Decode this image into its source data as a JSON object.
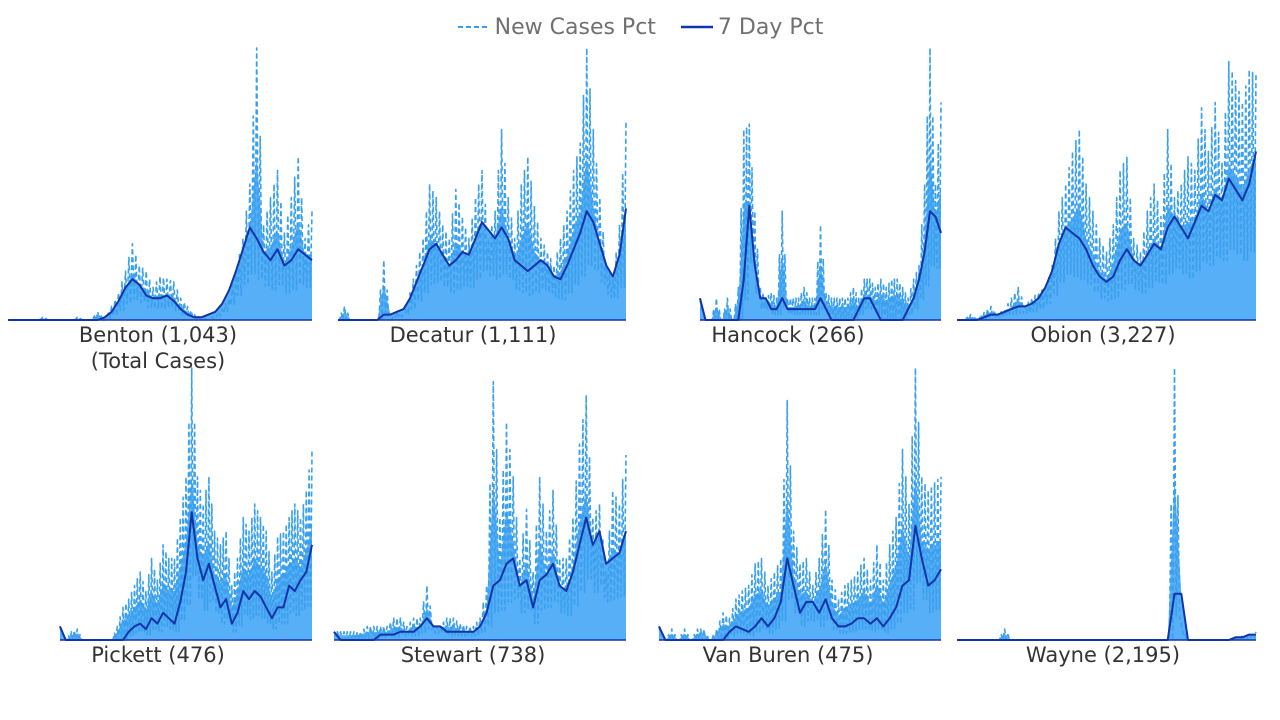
{
  "legend": {
    "series": [
      {
        "name": "New Cases Pct",
        "color": "#3aa0ee",
        "style": "dashed"
      },
      {
        "name": "7 Day Pct",
        "color": "#1234a8",
        "style": "solid"
      }
    ]
  },
  "colors": {
    "area": "#57aff8",
    "new_cases_line": "#3aa0ee",
    "seven_day_line": "#1234a8",
    "label_text": "#333333"
  },
  "chart_data": [
    {
      "type": "area",
      "county": "Benton",
      "total_cases": "(1,043)",
      "sublabel": "(Total Cases)",
      "title": "Benton (1,043)",
      "ylim": [
        0,
        1
      ],
      "new_cases_envelope": [
        0,
        0,
        0,
        0,
        0,
        0.01,
        0,
        0,
        0,
        0,
        0.01,
        0,
        0,
        0.03,
        0,
        0.05,
        0.1,
        0.18,
        0.28,
        0.2,
        0.18,
        0.12,
        0.16,
        0.15,
        0.14,
        0.08,
        0.05,
        0.02,
        0.01,
        0,
        0.02,
        0.04,
        0.08,
        0.18,
        0.3,
        0.5,
        1.0,
        0.35,
        0.45,
        0.55,
        0.32,
        0.45,
        0.6,
        0.3,
        0.4
      ],
      "seven_day": [
        0,
        0,
        0,
        0,
        0,
        0,
        0,
        0,
        0,
        0,
        0,
        0,
        0,
        0,
        0.01,
        0.03,
        0.07,
        0.12,
        0.15,
        0.13,
        0.09,
        0.08,
        0.08,
        0.09,
        0.07,
        0.04,
        0.02,
        0.01,
        0.01,
        0.02,
        0.03,
        0.06,
        0.11,
        0.18,
        0.26,
        0.34,
        0.3,
        0.25,
        0.22,
        0.26,
        0.2,
        0.22,
        0.26,
        0.24,
        0.22
      ]
    },
    {
      "type": "area",
      "county": "Decatur",
      "total_cases": "(1,111)",
      "sublabel": "",
      "title": "Decatur (1,111)",
      "ylim": [
        0,
        1
      ],
      "new_cases_envelope": [
        0,
        0.05,
        0,
        0,
        0,
        0,
        0,
        0.22,
        0,
        0.03,
        0.02,
        0.1,
        0.2,
        0.3,
        0.5,
        0.45,
        0.35,
        0.3,
        0.48,
        0.38,
        0.3,
        0.45,
        0.55,
        0.3,
        0.4,
        0.7,
        0.45,
        0.3,
        0.5,
        0.6,
        0.42,
        0.3,
        0.25,
        0.2,
        0.3,
        0.4,
        0.55,
        0.65,
        1.0,
        0.7,
        0.45,
        0.2,
        0.15,
        0.35,
        0.73
      ],
      "seven_day": [
        0,
        0,
        0,
        0,
        0,
        0,
        0,
        0.02,
        0.02,
        0.03,
        0.04,
        0.08,
        0.14,
        0.2,
        0.26,
        0.28,
        0.24,
        0.2,
        0.22,
        0.25,
        0.24,
        0.3,
        0.36,
        0.33,
        0.3,
        0.34,
        0.3,
        0.22,
        0.2,
        0.18,
        0.2,
        0.22,
        0.2,
        0.16,
        0.15,
        0.2,
        0.26,
        0.32,
        0.4,
        0.36,
        0.28,
        0.2,
        0.16,
        0.24,
        0.41
      ]
    },
    {
      "type": "area",
      "county": "Hancock",
      "total_cases": "(266)",
      "sublabel": "",
      "title": "Hancock (266)",
      "ylim": [
        0,
        1
      ],
      "new_cases_envelope": [
        0.08,
        0,
        0,
        0.08,
        0,
        0.08,
        0,
        0.12,
        0.7,
        0.72,
        0.4,
        0.12,
        0.08,
        0.1,
        0.08,
        0.4,
        0.08,
        0.08,
        0.08,
        0.12,
        0.08,
        0.08,
        0.35,
        0.1,
        0.08,
        0.08,
        0.08,
        0.08,
        0.12,
        0.08,
        0.15,
        0.15,
        0.12,
        0.15,
        0.12,
        0.15,
        0.15,
        0.12,
        0.08,
        0.15,
        0.2,
        0.5,
        1.0,
        0.5,
        0.8
      ],
      "seven_day": [
        0.08,
        0,
        0,
        0,
        0,
        0,
        0,
        0,
        0.15,
        0.42,
        0.2,
        0.08,
        0.08,
        0.04,
        0.04,
        0.08,
        0.04,
        0.04,
        0.04,
        0.04,
        0.04,
        0.04,
        0.08,
        0.04,
        0,
        0,
        0,
        0,
        0,
        0.04,
        0.08,
        0.08,
        0.04,
        0,
        0,
        0,
        0,
        0,
        0.04,
        0.08,
        0.15,
        0.25,
        0.4,
        0.38,
        0.32
      ]
    },
    {
      "type": "area",
      "county": "Obion",
      "total_cases": "(3,227)",
      "sublabel": "",
      "title": "Obion (3,227)",
      "ylim": [
        0,
        1
      ],
      "new_cases_envelope": [
        0,
        0,
        0.02,
        0.01,
        0.03,
        0.05,
        0.02,
        0.04,
        0.08,
        0.12,
        0.05,
        0.08,
        0.1,
        0.12,
        0.2,
        0.4,
        0.5,
        0.62,
        0.7,
        0.5,
        0.4,
        0.3,
        0.25,
        0.35,
        0.55,
        0.6,
        0.3,
        0.25,
        0.4,
        0.5,
        0.38,
        0.7,
        0.45,
        0.5,
        0.6,
        0.55,
        0.78,
        0.62,
        0.8,
        0.58,
        0.95,
        0.88,
        0.8,
        0.92,
        0.9
      ],
      "seven_day": [
        0,
        0,
        0,
        0,
        0.01,
        0.02,
        0.02,
        0.03,
        0.04,
        0.05,
        0.05,
        0.06,
        0.08,
        0.12,
        0.18,
        0.28,
        0.34,
        0.32,
        0.3,
        0.26,
        0.2,
        0.16,
        0.14,
        0.16,
        0.22,
        0.26,
        0.22,
        0.2,
        0.24,
        0.28,
        0.26,
        0.34,
        0.38,
        0.34,
        0.3,
        0.36,
        0.42,
        0.4,
        0.46,
        0.44,
        0.52,
        0.48,
        0.44,
        0.5,
        0.62
      ]
    },
    {
      "type": "area",
      "county": "Pickett",
      "total_cases": "(476)",
      "sublabel": "",
      "title": "Pickett (476)",
      "ylim": [
        0,
        1
      ],
      "new_cases_envelope": [
        0.05,
        0,
        0.03,
        0.04,
        0,
        0,
        0,
        0,
        0,
        0,
        0.05,
        0.12,
        0.15,
        0.2,
        0.25,
        0.18,
        0.3,
        0.22,
        0.35,
        0.3,
        0.3,
        0.45,
        0.6,
        1.0,
        0.6,
        0.5,
        0.6,
        0.4,
        0.35,
        0.4,
        0.2,
        0.3,
        0.45,
        0.4,
        0.5,
        0.45,
        0.4,
        0.25,
        0.38,
        0.4,
        0.45,
        0.5,
        0.45,
        0.55,
        0.7
      ],
      "seven_day": [
        0.05,
        0,
        0,
        0,
        0,
        0,
        0,
        0,
        0,
        0,
        0,
        0,
        0.03,
        0.05,
        0.06,
        0.04,
        0.08,
        0.06,
        0.1,
        0.08,
        0.06,
        0.14,
        0.25,
        0.47,
        0.3,
        0.22,
        0.28,
        0.2,
        0.12,
        0.15,
        0.06,
        0.1,
        0.18,
        0.15,
        0.18,
        0.16,
        0.12,
        0.08,
        0.12,
        0.12,
        0.2,
        0.18,
        0.22,
        0.25,
        0.35
      ]
    },
    {
      "type": "area",
      "county": "Stewart",
      "total_cases": "(738)",
      "sublabel": "",
      "title": "Stewart (738)",
      "ylim": [
        0,
        1
      ],
      "new_cases_envelope": [
        0.03,
        0.03,
        0.03,
        0.03,
        0.03,
        0.05,
        0.05,
        0.05,
        0.05,
        0.08,
        0.08,
        0.05,
        0.08,
        0.08,
        0.2,
        0.05,
        0.05,
        0.08,
        0.08,
        0.06,
        0.05,
        0.05,
        0.08,
        0.2,
        0.95,
        0.45,
        0.8,
        0.6,
        0.3,
        0.48,
        0.25,
        0.6,
        0.4,
        0.55,
        0.3,
        0.3,
        0.45,
        0.72,
        0.9,
        0.45,
        0.5,
        0.25,
        0.55,
        0.5,
        0.68
      ],
      "seven_day": [
        0.03,
        0,
        0,
        0,
        0,
        0,
        0,
        0.02,
        0.02,
        0.02,
        0.03,
        0.03,
        0.03,
        0.05,
        0.08,
        0.05,
        0.05,
        0.03,
        0.03,
        0.03,
        0.03,
        0.03,
        0.05,
        0.1,
        0.2,
        0.22,
        0.28,
        0.3,
        0.2,
        0.22,
        0.12,
        0.22,
        0.24,
        0.28,
        0.2,
        0.18,
        0.25,
        0.35,
        0.45,
        0.35,
        0.4,
        0.28,
        0.3,
        0.32,
        0.4
      ]
    },
    {
      "type": "area",
      "county": "Van Buren",
      "total_cases": "(475)",
      "sublabel": "",
      "title": "Van Buren (475)",
      "ylim": [
        0,
        1
      ],
      "new_cases_envelope": [
        0.05,
        0,
        0.04,
        0,
        0.04,
        0,
        0.04,
        0.04,
        0,
        0.04,
        0.1,
        0.08,
        0.15,
        0.18,
        0.2,
        0.28,
        0.3,
        0.2,
        0.25,
        0.3,
        0.88,
        0.4,
        0.28,
        0.3,
        0.2,
        0.3,
        0.48,
        0.22,
        0.15,
        0.2,
        0.22,
        0.25,
        0.3,
        0.22,
        0.35,
        0.22,
        0.35,
        0.45,
        0.7,
        0.5,
        1.0,
        0.6,
        0.55,
        0.58,
        0.6
      ],
      "seven_day": [
        0.05,
        0,
        0,
        0,
        0,
        0,
        0,
        0,
        0,
        0,
        0,
        0.03,
        0.05,
        0.04,
        0.03,
        0.05,
        0.08,
        0.05,
        0.08,
        0.14,
        0.3,
        0.2,
        0.1,
        0.14,
        0.14,
        0.1,
        0.15,
        0.08,
        0.05,
        0.05,
        0.06,
        0.08,
        0.08,
        0.06,
        0.08,
        0.05,
        0.08,
        0.12,
        0.2,
        0.22,
        0.42,
        0.3,
        0.2,
        0.22,
        0.26
      ]
    },
    {
      "type": "area",
      "county": "Wayne",
      "total_cases": "(2,195)",
      "sublabel": "",
      "title": "Wayne (2,195)",
      "ylim": [
        0,
        1
      ],
      "new_cases_envelope": [
        0,
        0,
        0,
        0,
        0,
        0,
        0,
        0.04,
        0,
        0,
        0,
        0,
        0,
        0,
        0,
        0,
        0,
        0,
        0,
        0,
        0,
        0,
        0,
        0,
        0,
        0,
        0,
        0,
        0,
        0,
        0,
        0,
        1.0,
        0.06,
        0,
        0,
        0,
        0,
        0,
        0,
        0,
        0.01,
        0.02,
        0.02,
        0.03
      ],
      "seven_day": [
        0,
        0,
        0,
        0,
        0,
        0,
        0,
        0,
        0,
        0,
        0,
        0,
        0,
        0,
        0,
        0,
        0,
        0,
        0,
        0,
        0,
        0,
        0,
        0,
        0,
        0,
        0,
        0,
        0,
        0,
        0,
        0,
        0.17,
        0.17,
        0,
        0,
        0,
        0,
        0,
        0,
        0,
        0.01,
        0.01,
        0.02,
        0.02
      ]
    }
  ]
}
